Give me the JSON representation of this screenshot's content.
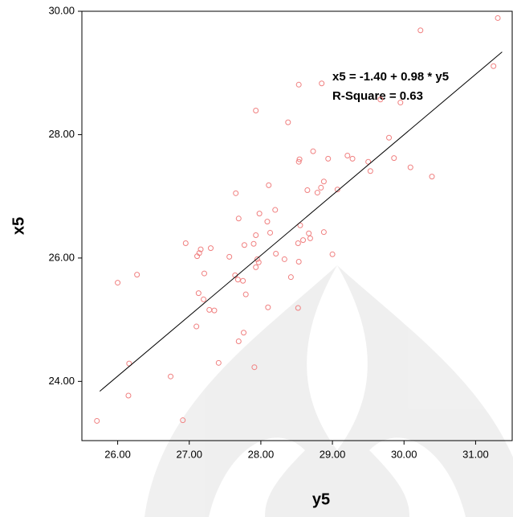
{
  "chart_data": {
    "type": "scatter",
    "x_label": "y5",
    "y_label": "x5",
    "annotations": [
      "x5 = -1.40 + 0.98 * y5",
      "R-Square = 0.63"
    ],
    "xlim": [
      25.5,
      31.5
    ],
    "ylim": [
      23.04,
      30
    ],
    "xticks": [
      {
        "value": 26,
        "label": "26.00"
      },
      {
        "value": 27,
        "label": "27.00"
      },
      {
        "value": 28,
        "label": "28.00"
      },
      {
        "value": 29,
        "label": "29.00"
      },
      {
        "value": 30,
        "label": "30.00"
      },
      {
        "value": 31,
        "label": "31.00"
      }
    ],
    "yticks": [
      {
        "value": 24,
        "label": "24.00"
      },
      {
        "value": 26,
        "label": "26.00"
      },
      {
        "value": 28,
        "label": "28.00"
      },
      {
        "value": 30,
        "label": "30.00"
      }
    ],
    "series": [
      {
        "type": "scatter",
        "color": "#f08080",
        "x": [
          25.71,
          26.0,
          26.27,
          26.16,
          26.15,
          26.74,
          26.91,
          26.95,
          27.14,
          27.11,
          27.16,
          27.3,
          27.21,
          27.13,
          27.2,
          27.28,
          27.35,
          27.1,
          27.41,
          27.56,
          27.64,
          27.65,
          27.69,
          27.77,
          27.68,
          27.75,
          27.79,
          27.76,
          27.69,
          27.91,
          27.9,
          27.93,
          27.95,
          27.93,
          27.97,
          27.98,
          27.93,
          28.09,
          28.11,
          28.13,
          28.2,
          28.21,
          28.33,
          28.42,
          28.1,
          28.38,
          28.52,
          28.53,
          28.52,
          28.55,
          28.59,
          28.67,
          28.69,
          28.53,
          28.54,
          28.53,
          28.65,
          28.73,
          28.79,
          28.84,
          28.88,
          28.85,
          28.88,
          29.0,
          28.94,
          29.07,
          29.21,
          29.28,
          29.5,
          29.53,
          29.67,
          29.79,
          29.86,
          30.09,
          30.39,
          30.23,
          31.31,
          31.25,
          29.95
        ],
        "values": [
          23.36,
          25.6,
          25.73,
          24.29,
          23.77,
          24.08,
          23.37,
          26.24,
          26.08,
          26.03,
          26.14,
          26.16,
          25.75,
          25.43,
          25.33,
          25.16,
          25.15,
          24.89,
          24.3,
          26.02,
          25.72,
          27.05,
          26.64,
          26.21,
          25.65,
          25.63,
          25.41,
          24.79,
          24.65,
          24.23,
          26.23,
          26.37,
          25.98,
          25.85,
          25.93,
          26.72,
          28.39,
          26.59,
          27.18,
          26.41,
          26.78,
          26.07,
          25.98,
          25.69,
          25.2,
          28.2,
          25.19,
          25.94,
          26.24,
          26.53,
          26.29,
          26.4,
          26.32,
          27.56,
          27.6,
          28.81,
          27.1,
          27.73,
          27.06,
          27.14,
          27.24,
          28.83,
          26.42,
          26.06,
          27.61,
          27.11,
          27.66,
          27.61,
          27.56,
          27.41,
          28.57,
          27.95,
          27.62,
          27.47,
          27.32,
          29.69,
          29.89,
          29.11,
          28.52
        ]
      },
      {
        "type": "line",
        "color": "#000000",
        "x": [
          25.75,
          31.37
        ],
        "values": [
          23.84,
          29.34
        ]
      }
    ]
  }
}
